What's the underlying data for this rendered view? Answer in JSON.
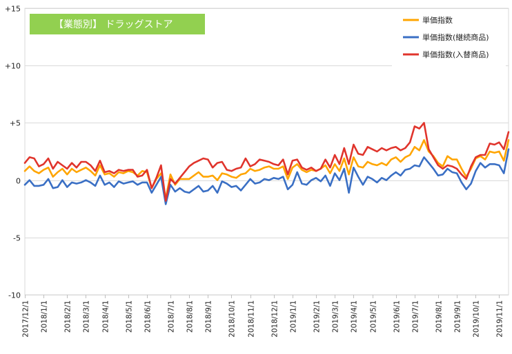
{
  "badge": {
    "text": "【業態別】 ドラッグストア",
    "bg": "#92d050"
  },
  "chart_data": {
    "type": "line",
    "ylim": [
      -10,
      15
    ],
    "yticks": [
      {
        "value": 15,
        "label": "+15"
      },
      {
        "value": 10,
        "label": "+10"
      },
      {
        "value": 5,
        "label": "+5"
      },
      {
        "value": 0,
        "label": "0"
      },
      {
        "value": -5,
        "label": "-5"
      },
      {
        "value": -10,
        "label": "-10"
      }
    ],
    "gridlines": true,
    "legend_position": "top-right",
    "x_index_range": [
      0,
      103
    ],
    "x_ticks": [
      {
        "i": 0,
        "label": "2017/12/1"
      },
      {
        "i": 4,
        "label": "2018/1/1"
      },
      {
        "i": 9,
        "label": "2018/2/1"
      },
      {
        "i": 13,
        "label": "2018/3/1"
      },
      {
        "i": 17,
        "label": "2018/4/1"
      },
      {
        "i": 22,
        "label": "2018/5/1"
      },
      {
        "i": 26,
        "label": "2018/6/1"
      },
      {
        "i": 31,
        "label": "2018/7/1"
      },
      {
        "i": 35,
        "label": "2018/8/1"
      },
      {
        "i": 39,
        "label": "2018/9/1"
      },
      {
        "i": 44,
        "label": "2018/10/1"
      },
      {
        "i": 48,
        "label": "2018/11/1"
      },
      {
        "i": 53,
        "label": "2018/12/1"
      },
      {
        "i": 57,
        "label": "2019/1/1"
      },
      {
        "i": 62,
        "label": "2019/2/1"
      },
      {
        "i": 66,
        "label": "2019/3/1"
      },
      {
        "i": 70,
        "label": "2019/4/1"
      },
      {
        "i": 74,
        "label": "2019/5/1"
      },
      {
        "i": 79,
        "label": "2019/6/1"
      },
      {
        "i": 83,
        "label": "2019/7/1"
      },
      {
        "i": 88,
        "label": "2019/8/1"
      },
      {
        "i": 92,
        "label": "2019/9/1"
      },
      {
        "i": 96,
        "label": "2019/10/1"
      },
      {
        "i": 101,
        "label": "2019/11/1"
      }
    ],
    "series": [
      {
        "name": "単価指数",
        "color": "#ffa500",
        "values": [
          0.8,
          1.2,
          0.8,
          0.6,
          0.9,
          1.1,
          0.3,
          0.7,
          1.0,
          0.5,
          1.0,
          0.7,
          0.9,
          1.1,
          0.8,
          0.4,
          1.3,
          0.5,
          0.6,
          0.3,
          0.7,
          0.6,
          0.8,
          0.7,
          0.4,
          0.8,
          0.7,
          -0.7,
          0.1,
          0.6,
          -1.6,
          0.5,
          -0.4,
          0.1,
          0.1,
          0.1,
          0.4,
          0.7,
          0.3,
          0.3,
          0.4,
          0.0,
          0.6,
          0.5,
          0.3,
          0.2,
          0.5,
          0.6,
          1.0,
          0.8,
          0.9,
          1.1,
          1.2,
          1.0,
          1.0,
          1.2,
          0.1,
          1.1,
          1.4,
          0.9,
          0.7,
          0.9,
          0.8,
          1.0,
          1.3,
          0.6,
          1.4,
          0.8,
          1.9,
          0.5,
          2.0,
          1.2,
          1.1,
          1.6,
          1.4,
          1.3,
          1.5,
          1.3,
          1.8,
          2.0,
          1.6,
          2.0,
          2.2,
          2.9,
          2.6,
          3.5,
          2.5,
          2.1,
          1.5,
          1.2,
          2.1,
          1.8,
          1.8,
          1.0,
          0.3,
          1.0,
          1.9,
          2.1,
          1.8,
          2.5,
          2.4,
          2.5,
          1.7,
          3.5
        ]
      },
      {
        "name": "単価指数(継続商品)",
        "color": "#3a6fc4",
        "values": [
          -0.4,
          0.0,
          -0.5,
          -0.5,
          -0.4,
          0.1,
          -0.7,
          -0.6,
          0.0,
          -0.6,
          -0.2,
          -0.3,
          -0.2,
          0.0,
          -0.2,
          -0.5,
          0.4,
          -0.4,
          -0.2,
          -0.6,
          -0.1,
          -0.3,
          -0.2,
          -0.1,
          -0.4,
          -0.2,
          -0.2,
          -1.1,
          -0.4,
          0.3,
          -2.1,
          -0.4,
          -1.0,
          -0.7,
          -1.0,
          -1.1,
          -0.8,
          -0.5,
          -1.0,
          -0.9,
          -0.5,
          -1.1,
          -0.1,
          -0.3,
          -0.6,
          -0.5,
          -0.9,
          -0.4,
          0.1,
          -0.3,
          -0.2,
          0.1,
          0.0,
          0.2,
          0.1,
          0.3,
          -0.8,
          -0.4,
          0.7,
          -0.3,
          -0.4,
          0.0,
          0.2,
          -0.1,
          0.4,
          -0.5,
          0.6,
          0.0,
          1.0,
          -1.1,
          1.1,
          0.3,
          -0.4,
          0.3,
          0.1,
          -0.2,
          0.2,
          0.0,
          0.4,
          0.7,
          0.4,
          0.9,
          1.0,
          1.3,
          1.2,
          2.0,
          1.5,
          1.0,
          0.4,
          0.5,
          1.0,
          0.7,
          0.6,
          -0.2,
          -0.8,
          -0.3,
          0.8,
          1.5,
          1.1,
          1.4,
          1.4,
          1.3,
          0.6,
          2.7
        ]
      },
      {
        "name": "単価指数(入替商品)",
        "color": "#e0342c",
        "values": [
          1.5,
          2.0,
          1.9,
          1.2,
          1.4,
          1.9,
          1.0,
          1.6,
          1.3,
          1.0,
          1.5,
          1.1,
          1.6,
          1.6,
          1.3,
          0.8,
          1.7,
          0.7,
          0.8,
          0.6,
          0.9,
          0.8,
          0.9,
          0.9,
          0.3,
          0.4,
          0.9,
          -0.7,
          0.2,
          1.3,
          -1.8,
          0.1,
          -0.3,
          0.2,
          0.7,
          1.2,
          1.5,
          1.7,
          1.9,
          1.8,
          1.1,
          1.5,
          1.6,
          0.9,
          0.8,
          1.0,
          1.1,
          1.9,
          1.2,
          1.4,
          1.8,
          1.7,
          1.6,
          1.4,
          1.3,
          1.8,
          0.5,
          1.7,
          1.8,
          1.1,
          0.9,
          1.1,
          0.8,
          1.0,
          1.8,
          1.1,
          2.2,
          1.4,
          2.8,
          1.4,
          3.1,
          2.3,
          2.2,
          2.9,
          2.7,
          2.5,
          2.8,
          2.6,
          2.8,
          2.9,
          2.6,
          2.8,
          3.3,
          4.7,
          4.5,
          5.0,
          2.7,
          2.0,
          1.3,
          1.0,
          1.3,
          1.2,
          1.0,
          0.5,
          0.1,
          1.2,
          2.0,
          2.2,
          2.2,
          3.2,
          3.1,
          3.3,
          2.7,
          4.2
        ]
      }
    ]
  }
}
